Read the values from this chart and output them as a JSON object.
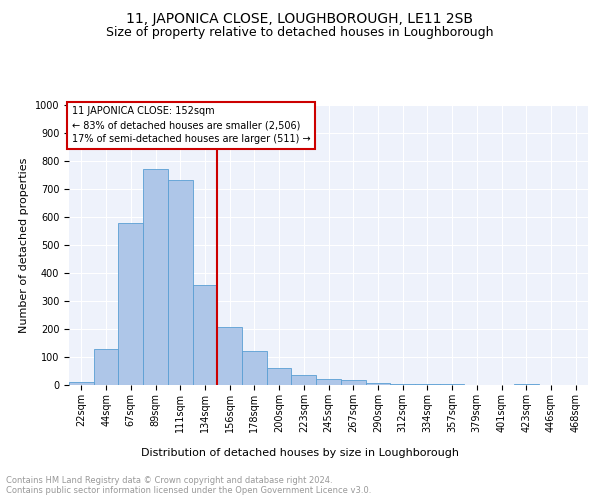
{
  "title": "11, JAPONICA CLOSE, LOUGHBOROUGH, LE11 2SB",
  "subtitle": "Size of property relative to detached houses in Loughborough",
  "xlabel": "Distribution of detached houses by size in Loughborough",
  "ylabel": "Number of detached properties",
  "footer_line1": "Contains HM Land Registry data © Crown copyright and database right 2024.",
  "footer_line2": "Contains public sector information licensed under the Open Government Licence v3.0.",
  "bar_labels": [
    "22sqm",
    "44sqm",
    "67sqm",
    "89sqm",
    "111sqm",
    "134sqm",
    "156sqm",
    "178sqm",
    "200sqm",
    "223sqm",
    "245sqm",
    "267sqm",
    "290sqm",
    "312sqm",
    "334sqm",
    "357sqm",
    "379sqm",
    "401sqm",
    "423sqm",
    "446sqm",
    "468sqm"
  ],
  "bar_values": [
    10,
    128,
    578,
    770,
    733,
    358,
    207,
    120,
    62,
    36,
    20,
    18,
    8,
    5,
    3,
    2,
    0,
    0,
    5,
    0,
    0
  ],
  "bar_color": "#aec6e8",
  "bar_edge_color": "#5a9fd4",
  "vline_x": 5.5,
  "vline_color": "#cc0000",
  "annotation_title": "11 JAPONICA CLOSE: 152sqm",
  "annotation_line1": "← 83% of detached houses are smaller (2,506)",
  "annotation_line2": "17% of semi-detached houses are larger (511) →",
  "ylim": [
    0,
    1000
  ],
  "yticks": [
    0,
    100,
    200,
    300,
    400,
    500,
    600,
    700,
    800,
    900,
    1000
  ],
  "bg_color": "#eef2fb",
  "grid_color": "#ffffff",
  "title_fontsize": 10,
  "subtitle_fontsize": 9,
  "ylabel_fontsize": 8,
  "xlabel_fontsize": 8,
  "tick_fontsize": 7,
  "annot_fontsize": 7,
  "footer_fontsize": 6,
  "footer_color": "#999999"
}
